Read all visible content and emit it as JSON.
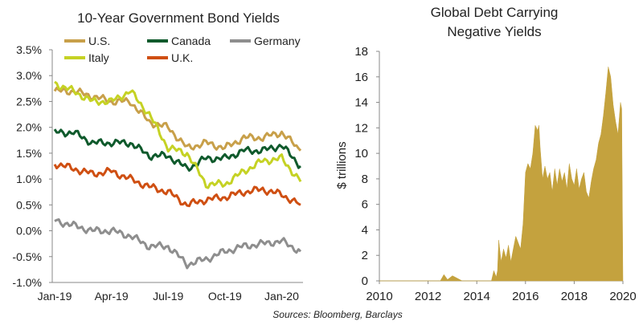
{
  "sources": "Sources: Bloomberg, Barclays",
  "chart_data": [
    {
      "type": "line",
      "title": "10-Year Government Bond Yields",
      "xlabel": "",
      "ylabel": "",
      "ylim": [
        -1.0,
        3.5
      ],
      "yticks": [
        "-1.0%",
        "-0.5%",
        "0.0%",
        "0.5%",
        "1.0%",
        "1.5%",
        "2.0%",
        "2.5%",
        "3.0%",
        "3.5%"
      ],
      "yticks_values": [
        -1.0,
        -0.5,
        0.0,
        0.5,
        1.0,
        1.5,
        2.0,
        2.5,
        3.0,
        3.5
      ],
      "xticks": [
        "Jan-19",
        "Apr-19",
        "Jul-19",
        "Oct-19",
        "Jan-20"
      ],
      "x": [
        "Jan-19",
        "Feb-19",
        "Mar-19",
        "Apr-19",
        "May-19",
        "Jun-19",
        "Jul-19",
        "Aug-19",
        "Sep-19",
        "Oct-19",
        "Nov-19",
        "Dec-19",
        "Jan-20",
        "Feb-20"
      ],
      "legend_position": "top",
      "grid": false,
      "series": [
        {
          "name": "U.S.",
          "color": "#c8a04a",
          "values": [
            2.7,
            2.7,
            2.6,
            2.5,
            2.5,
            2.1,
            2.0,
            1.6,
            1.7,
            1.6,
            1.8,
            1.8,
            1.9,
            1.55
          ]
        },
        {
          "name": "Canada",
          "color": "#0f5a2c",
          "values": [
            1.9,
            1.9,
            1.7,
            1.7,
            1.7,
            1.45,
            1.45,
            1.2,
            1.4,
            1.4,
            1.55,
            1.55,
            1.65,
            1.25
          ]
        },
        {
          "name": "Germany",
          "color": "#8e8e8e",
          "values": [
            0.2,
            0.1,
            0.0,
            0.0,
            -0.1,
            -0.3,
            -0.3,
            -0.65,
            -0.55,
            -0.4,
            -0.3,
            -0.25,
            -0.2,
            -0.4
          ]
        },
        {
          "name": "Italy",
          "color": "#c5d224",
          "values": [
            2.85,
            2.7,
            2.5,
            2.5,
            2.7,
            2.25,
            1.6,
            1.5,
            0.9,
            0.9,
            1.15,
            1.35,
            1.4,
            0.95
          ]
        },
        {
          "name": "U.K.",
          "color": "#cf4f12",
          "values": [
            1.3,
            1.2,
            1.1,
            1.15,
            1.0,
            0.85,
            0.75,
            0.5,
            0.6,
            0.65,
            0.75,
            0.8,
            0.7,
            0.5
          ]
        }
      ]
    },
    {
      "type": "area",
      "title_lines": [
        "Global Debt Carrying",
        "Negative Yields"
      ],
      "xlabel": "",
      "ylabel": "$ trillions",
      "ylim": [
        0,
        18
      ],
      "xlim": [
        2010,
        2020
      ],
      "yticks": [
        "0",
        "2",
        "4",
        "6",
        "8",
        "10",
        "12",
        "14",
        "16",
        "18"
      ],
      "yticks_values": [
        0,
        2,
        4,
        6,
        8,
        10,
        12,
        14,
        16,
        18
      ],
      "xticks": [
        "2010",
        "2012",
        "2014",
        "2016",
        "2018",
        "2020"
      ],
      "xticks_values": [
        2010,
        2012,
        2014,
        2016,
        2018,
        2020
      ],
      "color": "#c4a23e",
      "grid": false,
      "x": [
        2010.0,
        2012.5,
        2012.65,
        2012.8,
        2013.0,
        2013.2,
        2013.4,
        2014.6,
        2014.7,
        2014.8,
        2014.85,
        2014.9,
        2015.0,
        2015.1,
        2015.2,
        2015.3,
        2015.4,
        2015.5,
        2015.6,
        2015.7,
        2015.8,
        2015.9,
        2016.0,
        2016.1,
        2016.2,
        2016.3,
        2016.4,
        2016.5,
        2016.55,
        2016.6,
        2016.7,
        2016.8,
        2016.9,
        2017.0,
        2017.1,
        2017.2,
        2017.3,
        2017.4,
        2017.5,
        2017.6,
        2017.7,
        2017.8,
        2017.9,
        2018.0,
        2018.1,
        2018.2,
        2018.3,
        2018.4,
        2018.5,
        2018.6,
        2018.7,
        2018.8,
        2018.9,
        2019.0,
        2019.1,
        2019.2,
        2019.3,
        2019.4,
        2019.5,
        2019.6,
        2019.7,
        2019.8,
        2019.9,
        2019.95,
        2020.0
      ],
      "values": [
        0,
        0,
        0.5,
        0.1,
        0.4,
        0.2,
        0,
        0,
        0.8,
        0.3,
        0.8,
        3.2,
        1.5,
        2.5,
        1.8,
        2.8,
        1.5,
        2.5,
        3.5,
        3.0,
        2.5,
        4.5,
        8.5,
        9.2,
        8.8,
        10.0,
        12.2,
        11.8,
        12.2,
        10.5,
        8.0,
        9.0,
        8.0,
        8.5,
        7.0,
        8.8,
        7.5,
        8.8,
        7.8,
        8.5,
        7.2,
        9.2,
        8.0,
        7.5,
        8.8,
        7.2,
        8.0,
        8.5,
        7.0,
        6.5,
        7.8,
        8.8,
        9.5,
        10.8,
        11.5,
        13.0,
        14.8,
        16.8,
        16.0,
        13.8,
        12.5,
        11.5,
        14.0,
        13.5,
        0
      ]
    }
  ]
}
